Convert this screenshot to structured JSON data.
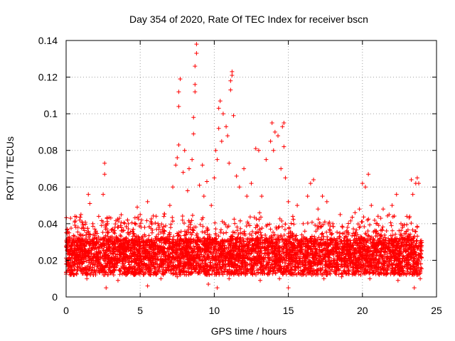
{
  "chart_data": {
    "type": "scatter",
    "title": "Day 354 of 2020, Rate Of TEC Index for receiver bscn",
    "xlabel": "GPS time / hours",
    "ylabel": "ROTI / TECUs",
    "xlim": [
      0,
      25
    ],
    "ylim": [
      0,
      0.14
    ],
    "xticks": [
      "0",
      "5",
      "10",
      "15",
      "20",
      "25"
    ],
    "yticks": [
      "0",
      "0.02",
      "0.04",
      "0.06",
      "0.08",
      "0.1",
      "0.12",
      "0.14"
    ],
    "grid": true,
    "marker": "+",
    "color": "#ff0000",
    "series": [
      {
        "points": [
          [
            0.0,
            0.018
          ],
          [
            0.1,
            0.025
          ],
          [
            0.2,
            0.035
          ],
          [
            0.3,
            0.043
          ],
          [
            0.4,
            0.03
          ],
          [
            0.6,
            0.044
          ],
          [
            0.8,
            0.038
          ],
          [
            1.0,
            0.045
          ],
          [
            1.2,
            0.022
          ],
          [
            1.5,
            0.056
          ],
          [
            1.6,
            0.051
          ],
          [
            1.8,
            0.04
          ],
          [
            2.0,
            0.036
          ],
          [
            2.2,
            0.044
          ],
          [
            2.5,
            0.056
          ],
          [
            2.6,
            0.073
          ],
          [
            2.6,
            0.067
          ],
          [
            2.8,
            0.04
          ],
          [
            3.0,
            0.03
          ],
          [
            3.3,
            0.038
          ],
          [
            3.6,
            0.043
          ],
          [
            3.8,
            0.036
          ],
          [
            4.2,
            0.04
          ],
          [
            4.5,
            0.033
          ],
          [
            4.8,
            0.049
          ],
          [
            5.0,
            0.045
          ],
          [
            5.3,
            0.038
          ],
          [
            5.5,
            0.052
          ],
          [
            5.8,
            0.035
          ],
          [
            6.2,
            0.04
          ],
          [
            6.6,
            0.044
          ],
          [
            7.0,
            0.05
          ],
          [
            7.2,
            0.06
          ],
          [
            7.4,
            0.072
          ],
          [
            7.5,
            0.076
          ],
          [
            7.6,
            0.083
          ],
          [
            7.6,
            0.104
          ],
          [
            7.6,
            0.112
          ],
          [
            7.7,
            0.119
          ],
          [
            7.9,
            0.068
          ],
          [
            8.0,
            0.08
          ],
          [
            8.2,
            0.058
          ],
          [
            8.3,
            0.07
          ],
          [
            8.5,
            0.075
          ],
          [
            8.6,
            0.098
          ],
          [
            8.6,
            0.089
          ],
          [
            8.7,
            0.112
          ],
          [
            8.7,
            0.116
          ],
          [
            8.7,
            0.126
          ],
          [
            8.8,
            0.133
          ],
          [
            8.8,
            0.138
          ],
          [
            9.0,
            0.061
          ],
          [
            9.2,
            0.072
          ],
          [
            9.3,
            0.055
          ],
          [
            9.5,
            0.063
          ],
          [
            9.8,
            0.05
          ],
          [
            10.0,
            0.065
          ],
          [
            10.1,
            0.08
          ],
          [
            10.2,
            0.075
          ],
          [
            10.3,
            0.092
          ],
          [
            10.3,
            0.103
          ],
          [
            10.4,
            0.107
          ],
          [
            10.5,
            0.085
          ],
          [
            10.6,
            0.1
          ],
          [
            10.8,
            0.093
          ],
          [
            10.9,
            0.088
          ],
          [
            11.0,
            0.073
          ],
          [
            11.1,
            0.113
          ],
          [
            11.1,
            0.118
          ],
          [
            11.2,
            0.121
          ],
          [
            11.2,
            0.123
          ],
          [
            11.3,
            0.099
          ],
          [
            11.5,
            0.066
          ],
          [
            11.7,
            0.06
          ],
          [
            12.0,
            0.07
          ],
          [
            12.2,
            0.055
          ],
          [
            12.5,
            0.062
          ],
          [
            12.8,
            0.081
          ],
          [
            13.0,
            0.08
          ],
          [
            13.2,
            0.055
          ],
          [
            13.5,
            0.075
          ],
          [
            13.8,
            0.085
          ],
          [
            13.9,
            0.095
          ],
          [
            14.0,
            0.08
          ],
          [
            14.1,
            0.09
          ],
          [
            14.3,
            0.088
          ],
          [
            14.5,
            0.07
          ],
          [
            14.6,
            0.093
          ],
          [
            14.7,
            0.095
          ],
          [
            14.7,
            0.082
          ],
          [
            14.8,
            0.065
          ],
          [
            15.0,
            0.052
          ],
          [
            15.3,
            0.044
          ],
          [
            15.6,
            0.05
          ],
          [
            16.0,
            0.04
          ],
          [
            16.3,
            0.055
          ],
          [
            16.5,
            0.062
          ],
          [
            16.7,
            0.064
          ],
          [
            17.0,
            0.048
          ],
          [
            17.3,
            0.055
          ],
          [
            17.6,
            0.052
          ],
          [
            18.0,
            0.04
          ],
          [
            18.5,
            0.045
          ],
          [
            19.0,
            0.038
          ],
          [
            19.5,
            0.046
          ],
          [
            19.8,
            0.048
          ],
          [
            20.0,
            0.062
          ],
          [
            20.2,
            0.06
          ],
          [
            20.4,
            0.067
          ],
          [
            20.6,
            0.05
          ],
          [
            21.0,
            0.04
          ],
          [
            21.4,
            0.048
          ],
          [
            21.8,
            0.045
          ],
          [
            22.0,
            0.05
          ],
          [
            22.3,
            0.056
          ],
          [
            22.6,
            0.04
          ],
          [
            23.0,
            0.044
          ],
          [
            23.3,
            0.064
          ],
          [
            23.4,
            0.056
          ],
          [
            23.6,
            0.062
          ],
          [
            23.7,
            0.065
          ],
          [
            23.8,
            0.062
          ],
          [
            24.0,
            0.028
          ],
          [
            0.5,
            0.012
          ],
          [
            1.4,
            0.01
          ],
          [
            2.7,
            0.005
          ],
          [
            3.5,
            0.009
          ],
          [
            4.6,
            0.012
          ],
          [
            5.5,
            0.006
          ],
          [
            6.4,
            0.01
          ],
          [
            7.5,
            0.011
          ],
          [
            8.4,
            0.013
          ],
          [
            9.6,
            0.007
          ],
          [
            10.2,
            0.005
          ],
          [
            11.0,
            0.01
          ],
          [
            12.1,
            0.012
          ],
          [
            13.1,
            0.009
          ],
          [
            14.4,
            0.01
          ],
          [
            15.0,
            0.005
          ],
          [
            16.2,
            0.012
          ],
          [
            17.4,
            0.01
          ],
          [
            18.6,
            0.011
          ],
          [
            19.5,
            0.013
          ],
          [
            20.5,
            0.01
          ],
          [
            21.6,
            0.012
          ],
          [
            22.4,
            0.009
          ],
          [
            23.5,
            0.005
          ],
          [
            23.9,
            0.01
          ]
        ]
      }
    ]
  }
}
